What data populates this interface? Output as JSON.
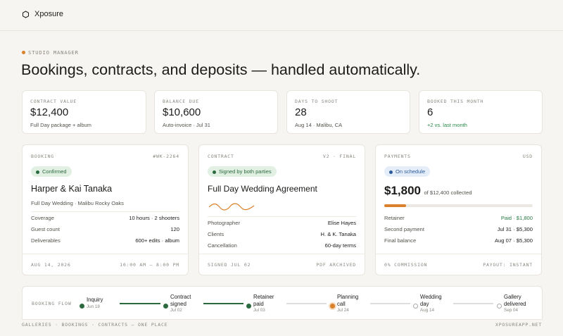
{
  "header": {
    "brand": "Xposure"
  },
  "hero": {
    "eyebrow": "STUDIO MANAGER",
    "title": "Bookings, contracts, and deposits — handled automatically."
  },
  "stats": [
    {
      "label": "CONTRACT VALUE",
      "value": "$12,400",
      "note": "Full Day package + album"
    },
    {
      "label": "BALANCE DUE",
      "value": "$10,600",
      "note": "Auto-invoice · Jul 31"
    },
    {
      "label": "DAYS TO SHOOT",
      "value": "28",
      "note": "Aug 14 · Malibu, CA"
    },
    {
      "label": "BOOKED THIS MONTH",
      "value": "6",
      "note": "+2 vs. last month"
    }
  ],
  "booking": {
    "label": "BOOKING",
    "id": "#WK-2264",
    "badge": "Confirmed",
    "name": "Harper & Kai Tanaka",
    "subtitle": "Full Day Wedding · Malibu Rocky Oaks",
    "rows": [
      [
        "Coverage",
        "10 hours · 2 shooters"
      ],
      [
        "Guest count",
        "120"
      ],
      [
        "Deliverables",
        "600+ edits · album"
      ]
    ],
    "footer_left": "AUG 14, 2026",
    "footer_right": "10:00 AM – 8:00 PM"
  },
  "contract": {
    "label": "CONTRACT",
    "version": "V2 · FINAL",
    "badge": "Signed by both parties",
    "title": "Full Day Wedding Agreement",
    "rows": [
      [
        "Photographer",
        "Elise Hayes"
      ],
      [
        "Clients",
        "H. & K. Tanaka"
      ],
      [
        "Cancellation",
        "60-day terms"
      ]
    ],
    "footer_left": "SIGNED JUL 02",
    "footer_right": "PDF ARCHIVED"
  },
  "payments": {
    "label": "PAYMENTS",
    "currency": "USD",
    "badge": "On schedule",
    "amount": "$1,800",
    "amount_note": "of $12,400 collected",
    "rows": [
      [
        "Retainer",
        "Paid · $1,800"
      ],
      [
        "Second payment",
        "Jul 31 · $5,300"
      ],
      [
        "Final balance",
        "Aug 07 · $5,300"
      ]
    ],
    "footer_left": "0% COMMISSION",
    "footer_right": "PAYOUT: INSTANT"
  },
  "flow": {
    "label": "BOOKING FLOW",
    "steps": [
      {
        "name": "Inquiry",
        "date": "Jun 18"
      },
      {
        "name": "Contract signed",
        "date": "Jul 02"
      },
      {
        "name": "Retainer paid",
        "date": "Jul 03"
      },
      {
        "name": "Planning call",
        "date": "Jul 24"
      },
      {
        "name": "Wedding day",
        "date": "Aug 14"
      },
      {
        "name": "Gallery delivered",
        "date": "Sep 04"
      }
    ]
  },
  "footer": {
    "left": "GALLERIES · BOOKINGS · CONTRACTS — ONE PLACE",
    "right": "XPOSUREAPP.NET"
  }
}
